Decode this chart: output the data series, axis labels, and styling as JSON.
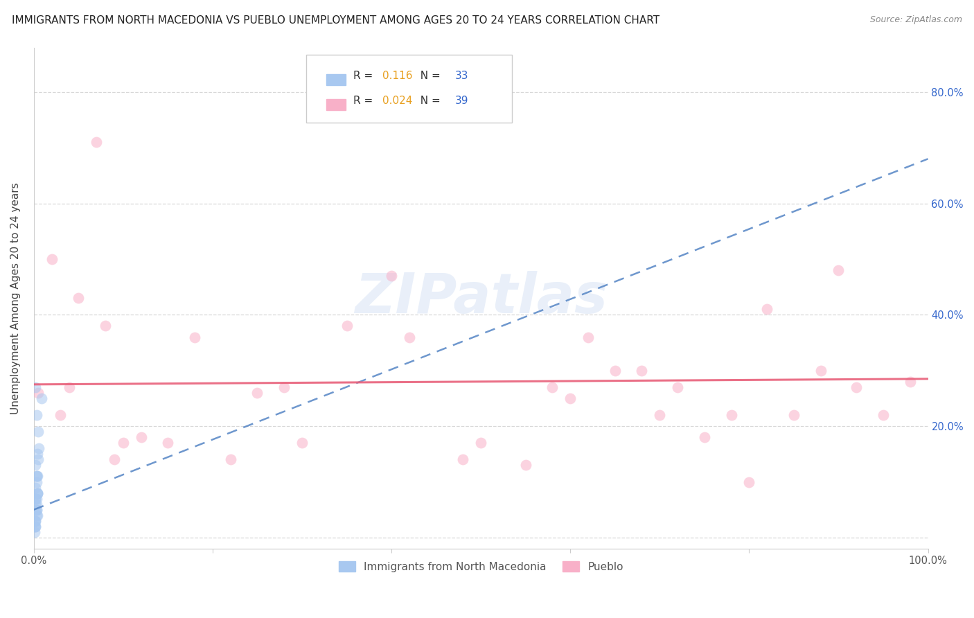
{
  "title": "IMMIGRANTS FROM NORTH MACEDONIA VS PUEBLO UNEMPLOYMENT AMONG AGES 20 TO 24 YEARS CORRELATION CHART",
  "source": "Source: ZipAtlas.com",
  "ylabel": "Unemployment Among Ages 20 to 24 years",
  "xlim": [
    0.0,
    1.0
  ],
  "ylim": [
    -0.02,
    0.88
  ],
  "xticks": [
    0.0,
    0.2,
    0.4,
    0.6,
    0.8,
    1.0
  ],
  "xtick_labels": [
    "0.0%",
    "",
    "",
    "",
    "",
    "100.0%"
  ],
  "yticks": [
    0.0,
    0.2,
    0.4,
    0.6,
    0.8
  ],
  "ytick_labels": [
    "",
    "20.0%",
    "40.0%",
    "60.0%",
    "80.0%"
  ],
  "blue_R": "0.116",
  "blue_N": "33",
  "pink_R": "0.024",
  "pink_N": "39",
  "blue_dot_color": "#a8c8f0",
  "pink_dot_color": "#f8b0c8",
  "blue_line_color": "#5585c5",
  "pink_line_color": "#e8607a",
  "legend_R_color": "#e8a020",
  "legend_N_color": "#3366cc",
  "watermark": "ZIPatlas",
  "blue_scatter_x": [
    0.002,
    0.003,
    0.002,
    0.004,
    0.003,
    0.002,
    0.005,
    0.003,
    0.001,
    0.002,
    0.004,
    0.003,
    0.002,
    0.004,
    0.003,
    0.002,
    0.002,
    0.006,
    0.004,
    0.003,
    0.001,
    0.002,
    0.003,
    0.002,
    0.005,
    0.003,
    0.004,
    0.002,
    0.009,
    0.004,
    0.001,
    0.003,
    0.002
  ],
  "blue_scatter_y": [
    0.02,
    0.05,
    0.09,
    0.11,
    0.07,
    0.03,
    0.14,
    0.06,
    0.01,
    0.03,
    0.08,
    0.11,
    0.27,
    0.04,
    0.22,
    0.13,
    0.06,
    0.16,
    0.08,
    0.04,
    0.02,
    0.05,
    0.11,
    0.07,
    0.19,
    0.1,
    0.15,
    0.07,
    0.25,
    0.08,
    0.03,
    0.05,
    0.02
  ],
  "pink_scatter_x": [
    0.005,
    0.02,
    0.05,
    0.08,
    0.04,
    0.12,
    0.09,
    0.15,
    0.18,
    0.22,
    0.07,
    0.28,
    0.35,
    0.42,
    0.25,
    0.48,
    0.55,
    0.58,
    0.62,
    0.68,
    0.72,
    0.75,
    0.78,
    0.82,
    0.85,
    0.88,
    0.92,
    0.95,
    0.98,
    0.03,
    0.1,
    0.3,
    0.5,
    0.65,
    0.8,
    0.9,
    0.4,
    0.7,
    0.6
  ],
  "pink_scatter_y": [
    0.26,
    0.5,
    0.43,
    0.38,
    0.27,
    0.18,
    0.14,
    0.17,
    0.36,
    0.14,
    0.71,
    0.27,
    0.38,
    0.36,
    0.26,
    0.14,
    0.13,
    0.27,
    0.36,
    0.3,
    0.27,
    0.18,
    0.22,
    0.41,
    0.22,
    0.3,
    0.27,
    0.22,
    0.28,
    0.22,
    0.17,
    0.17,
    0.17,
    0.3,
    0.1,
    0.48,
    0.47,
    0.22,
    0.25
  ],
  "marker_size": 130,
  "marker_alpha": 0.55,
  "grid_color": "#d8d8d8",
  "background_color": "#ffffff",
  "title_fontsize": 11,
  "axis_label_fontsize": 11,
  "tick_fontsize": 10.5,
  "legend_fontsize": 11,
  "blue_trend_start_x": 0.0,
  "blue_trend_start_y": 0.05,
  "blue_trend_end_x": 1.0,
  "blue_trend_end_y": 0.68,
  "pink_trend_start_x": 0.0,
  "pink_trend_start_y": 0.275,
  "pink_trend_end_x": 1.0,
  "pink_trend_end_y": 0.285
}
